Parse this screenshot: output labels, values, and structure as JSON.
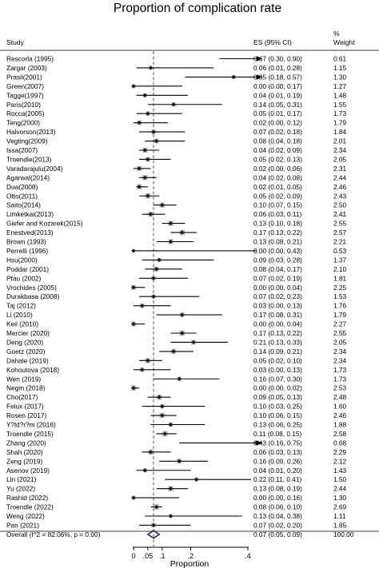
{
  "chart_data": {
    "type": "forest",
    "title": "Proportion of complication rate",
    "xlabel": "Proportion",
    "x_ticks": [
      "0",
      ".05",
      ".1",
      ".2",
      ".4"
    ],
    "x_tick_values": [
      0,
      0.05,
      0.1,
      0.2,
      0.4
    ],
    "xlim": [
      -0.05,
      0.45
    ],
    "reference_line": 0.07,
    "columns": {
      "study": "Study",
      "es": "ES (95% CI)",
      "weight_line1": "%",
      "weight_line2": "Weight"
    },
    "studies": [
      {
        "study": "Rescorla (1995)",
        "es": 0.67,
        "lo": 0.3,
        "hi": 0.9,
        "es_ci": "0.67 (0.30, 0.90)",
        "weight": "0.61"
      },
      {
        "study": "Zargar (2003)",
        "es": 0.06,
        "lo": 0.01,
        "hi": 0.28,
        "es_ci": "0.06 (0.01, 0.28)",
        "weight": "1.15"
      },
      {
        "study": "Prasil(2001)",
        "es": 0.35,
        "lo": 0.18,
        "hi": 0.57,
        "es_ci": "0.35 (0.18, 0.57)",
        "weight": "1.30"
      },
      {
        "study": "Green(2007)",
        "es": 0.0,
        "lo": 0.0,
        "hi": 0.17,
        "es_ci": "0.00 (0.00, 0.17)",
        "weight": "1.27"
      },
      {
        "study": "Tagge(1997)",
        "es": 0.04,
        "lo": 0.01,
        "hi": 0.19,
        "es_ci": "0.04 (0.01, 0.19)",
        "weight": "1.48"
      },
      {
        "study": "Paris(2010)",
        "es": 0.14,
        "lo": 0.05,
        "hi": 0.31,
        "es_ci": "0.14 (0.05, 0.31)",
        "weight": "1.55"
      },
      {
        "study": "Rocca(2005)",
        "es": 0.05,
        "lo": 0.01,
        "hi": 0.17,
        "es_ci": "0.05 (0.01, 0.17)",
        "weight": "1.73"
      },
      {
        "study": "Teng(2000)",
        "es": 0.02,
        "lo": 0.0,
        "hi": 0.12,
        "es_ci": "0.02 (0.00, 0.12)",
        "weight": "1.79"
      },
      {
        "study": "Halvorson(2013)",
        "es": 0.07,
        "lo": 0.02,
        "hi": 0.18,
        "es_ci": "0.07 (0.02, 0.18)",
        "weight": "1.84"
      },
      {
        "study": "Vegting(2009)",
        "es": 0.08,
        "lo": 0.04,
        "hi": 0.18,
        "es_ci": "0.08 (0.04, 0.18)",
        "weight": "2.01"
      },
      {
        "study": "Issa(2007)",
        "es": 0.04,
        "lo": 0.02,
        "hi": 0.09,
        "es_ci": "0.04 (0.02, 0.09)",
        "weight": "2.34"
      },
      {
        "study": "Troendle(2013)",
        "es": 0.05,
        "lo": 0.02,
        "hi": 0.13,
        "es_ci": "0.05 (0.02, 0.13)",
        "weight": "2.05"
      },
      {
        "study": "Varadarajulu(2004)",
        "es": 0.02,
        "lo": 0.0,
        "hi": 0.06,
        "es_ci": "0.02 (0.00, 0.06)",
        "weight": "2.31"
      },
      {
        "study": "Agarwal(2014)",
        "es": 0.04,
        "lo": 0.02,
        "hi": 0.08,
        "es_ci": "0.04 (0.02, 0.08)",
        "weight": "2.44"
      },
      {
        "study": "Dua(2008)",
        "es": 0.02,
        "lo": 0.01,
        "hi": 0.05,
        "es_ci": "0.02 (0.01, 0.05)",
        "weight": "2.46"
      },
      {
        "study": "Otto(2011)",
        "es": 0.05,
        "lo": 0.02,
        "hi": 0.09,
        "es_ci": "0.05 (0.02, 0.09)",
        "weight": "2.43"
      },
      {
        "study": "Saito(2014)",
        "es": 0.1,
        "lo": 0.07,
        "hi": 0.15,
        "es_ci": "0.10 (0.07, 0.15)",
        "weight": "2.50"
      },
      {
        "study": "Limketkai(2013)",
        "es": 0.06,
        "lo": 0.03,
        "hi": 0.11,
        "es_ci": "0.06 (0.03, 0.11)",
        "weight": "2.41"
      },
      {
        "study": "Giefer and Kozarek(2015)",
        "es": 0.13,
        "lo": 0.1,
        "hi": 0.18,
        "es_ci": "0.13 (0.10, 0.18)",
        "weight": "2.55"
      },
      {
        "study": "Enestved(2013)",
        "es": 0.17,
        "lo": 0.13,
        "hi": 0.22,
        "es_ci": "0.17 (0.13, 0.22)",
        "weight": "2.57"
      },
      {
        "study": "Brown (1993)",
        "es": 0.13,
        "lo": 0.08,
        "hi": 0.21,
        "es_ci": "0.13 (0.08, 0.21)",
        "weight": "2.21"
      },
      {
        "study": "Perrelli (1996)",
        "es": 0.0,
        "lo": 0.0,
        "hi": 0.43,
        "es_ci": "0.00 (0.00, 0.43)",
        "weight": "0.53"
      },
      {
        "study": "Hsu(2000)",
        "es": 0.09,
        "lo": 0.03,
        "hi": 0.28,
        "es_ci": "0.09 (0.03, 0.28)",
        "weight": "1.37"
      },
      {
        "study": "Poddar (2001)",
        "es": 0.08,
        "lo": 0.04,
        "hi": 0.17,
        "es_ci": "0.08 (0.04, 0.17)",
        "weight": "2.10"
      },
      {
        "study": "Pfau (2002)",
        "es": 0.07,
        "lo": 0.02,
        "hi": 0.19,
        "es_ci": "0.07 (0.02, 0.19)",
        "weight": "1.81"
      },
      {
        "study": "Vrochides (2005)",
        "es": 0.0,
        "lo": 0.0,
        "hi": 0.04,
        "es_ci": "0.00 (0.00, 0.04)",
        "weight": "2.25"
      },
      {
        "study": "Durakbasa (2008)",
        "es": 0.07,
        "lo": 0.02,
        "hi": 0.23,
        "es_ci": "0.07 (0.02, 0.23)",
        "weight": "1.53"
      },
      {
        "study": "Taj (2012)",
        "es": 0.03,
        "lo": 0.0,
        "hi": 0.13,
        "es_ci": "0.03 (0.00, 0.13)",
        "weight": "1.76"
      },
      {
        "study": "Li (2010)",
        "es": 0.17,
        "lo": 0.08,
        "hi": 0.31,
        "es_ci": "0.17 (0.08, 0.31)",
        "weight": "1.79"
      },
      {
        "study": "Keil (2010)",
        "es": 0.0,
        "lo": 0.0,
        "hi": 0.04,
        "es_ci": "0.00 (0.00, 0.04)",
        "weight": "2.27"
      },
      {
        "study": "Mercier (2020)",
        "es": 0.17,
        "lo": 0.13,
        "hi": 0.22,
        "es_ci": "0.17 (0.13, 0.22)",
        "weight": "2.55"
      },
      {
        "study": "Deng (2020)",
        "es": 0.21,
        "lo": 0.13,
        "hi": 0.33,
        "es_ci": "0.21 (0.13, 0.33)",
        "weight": "2.05"
      },
      {
        "study": "Goetz (2020)",
        "es": 0.14,
        "lo": 0.09,
        "hi": 0.21,
        "es_ci": "0.14 (0.09, 0.21)",
        "weight": "2.34"
      },
      {
        "study": "Dahale (2019)",
        "es": 0.05,
        "lo": 0.02,
        "hi": 0.1,
        "es_ci": "0.05 (0.02, 0.10)",
        "weight": "2.34"
      },
      {
        "study": "Kohoutova (2018)",
        "es": 0.03,
        "lo": 0.0,
        "hi": 0.13,
        "es_ci": "0.03 (0.00, 0.13)",
        "weight": "1.73"
      },
      {
        "study": "Wen (2019)",
        "es": 0.16,
        "lo": 0.07,
        "hi": 0.3,
        "es_ci": "0.16 (0.07, 0.30)",
        "weight": "1.73"
      },
      {
        "study": "Negm (2018)",
        "es": 0.0,
        "lo": 0.0,
        "hi": 0.02,
        "es_ci": "0.00 (0.00, 0.02)",
        "weight": "2.53"
      },
      {
        "study": "Cho(2017)",
        "es": 0.09,
        "lo": 0.05,
        "hi": 0.13,
        "es_ci": "0.09 (0.05, 0.13)",
        "weight": "2.48"
      },
      {
        "study": "Felux (2017)",
        "es": 0.1,
        "lo": 0.03,
        "hi": 0.25,
        "es_ci": "0.10 (0.03, 0.25)",
        "weight": "1.60"
      },
      {
        "study": "Rosen (2017)",
        "es": 0.1,
        "lo": 0.06,
        "hi": 0.15,
        "es_ci": "0.10 (0.06, 0.15)",
        "weight": "2.46"
      },
      {
        "study": "Y?ld?r?m (2016)",
        "es": 0.13,
        "lo": 0.06,
        "hi": 0.25,
        "es_ci": "0.13 (0.06, 0.25)",
        "weight": "1.88"
      },
      {
        "study": "Troendle (2015)",
        "es": 0.11,
        "lo": 0.08,
        "hi": 0.15,
        "es_ci": "0.11 (0.08, 0.15)",
        "weight": "2.58"
      },
      {
        "study": "Zhang (2020)",
        "es": 0.43,
        "lo": 0.16,
        "hi": 0.75,
        "es_ci": "0.43 (0.16, 0.75)",
        "weight": "0.68"
      },
      {
        "study": "Shah (2020)",
        "es": 0.06,
        "lo": 0.03,
        "hi": 0.13,
        "es_ci": "0.06 (0.03, 0.13)",
        "weight": "2.29"
      },
      {
        "study": "Zeng (2019)",
        "es": 0.16,
        "lo": 0.09,
        "hi": 0.26,
        "es_ci": "0.16 (0.09, 0.26)",
        "weight": "2.12"
      },
      {
        "study": "Asenov (2019)",
        "es": 0.04,
        "lo": 0.01,
        "hi": 0.2,
        "es_ci": "0.04 (0.01, 0.20)",
        "weight": "1.43"
      },
      {
        "study": "Lin (2021)",
        "es": 0.22,
        "lo": 0.11,
        "hi": 0.41,
        "es_ci": "0.22 (0.11, 0.41)",
        "weight": "1.50"
      },
      {
        "study": "Yu (2022)",
        "es": 0.13,
        "lo": 0.08,
        "hi": 0.19,
        "es_ci": "0.13 (0.08, 0.19)",
        "weight": "2.44"
      },
      {
        "study": "Rashid (2022)",
        "es": 0.0,
        "lo": 0.0,
        "hi": 0.16,
        "es_ci": "0.00 (0.00, 0.16)",
        "weight": "1.30"
      },
      {
        "study": "Troendle (2022)",
        "es": 0.08,
        "lo": 0.06,
        "hi": 0.1,
        "es_ci": "0.08 (0.06, 0.10)",
        "weight": "2.69"
      },
      {
        "study": "Weng (2022)",
        "es": 0.13,
        "lo": 0.04,
        "hi": 0.38,
        "es_ci": "0.13 (0.04, 0.38)",
        "weight": "1.11"
      },
      {
        "study": "Pan (2021)",
        "es": 0.07,
        "lo": 0.02,
        "hi": 0.2,
        "es_ci": "0.07 (0.02, 0.20)",
        "weight": "1.85"
      }
    ],
    "overall": {
      "label": "Overall  (I^2 = 82.06%, p = 0.00)",
      "es": 0.07,
      "lo": 0.05,
      "hi": 0.09,
      "es_ci": "0.07 (0.05, 0.09)",
      "weight": "100.00"
    },
    "colors": {
      "box": "#bdbdbd",
      "point": "#111111",
      "reference": "#9e3b3b",
      "diamond": "#1f2f7a"
    }
  }
}
